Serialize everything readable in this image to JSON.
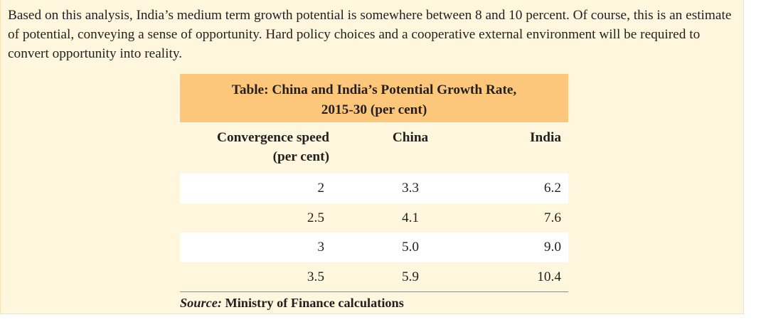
{
  "paragraph": "Based on this analysis, India’s medium term growth potential is somewhere between 8 and 10 percent. Of course, this is an estimate of potential, conveying a sense of opportunity. Hard policy choices and a cooperative external environment will be required to convert opportunity into reality.",
  "table": {
    "title_line1": "Table: China and India’s Potential Growth Rate,",
    "title_line2": "2015-30 (per cent)",
    "headers": {
      "col1_line1": "Convergence speed",
      "col1_line2": "(per cent)",
      "col2": "China",
      "col3": "India"
    },
    "rows": [
      {
        "speed": "2",
        "china": "3.3",
        "india": "6.2"
      },
      {
        "speed": "2.5",
        "china": "4.1",
        "india": "7.6"
      },
      {
        "speed": "3",
        "china": "5.0",
        "india": "9.0"
      },
      {
        "speed": "3.5",
        "china": "5.9",
        "india": "10.4"
      }
    ],
    "source_label": "Source:",
    "source_text": " Ministry of Finance calculations"
  },
  "colors": {
    "box_background": "#fef6dd",
    "title_band": "#fcc77a",
    "row_highlight": "#ffffff",
    "text": "#231f20"
  }
}
